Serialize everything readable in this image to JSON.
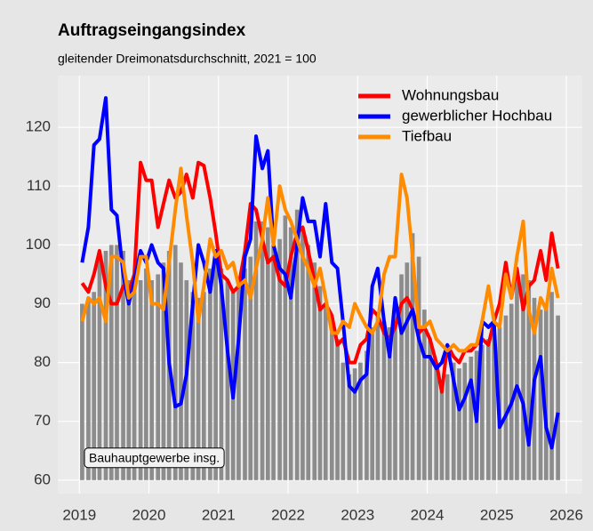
{
  "chart_data": {
    "type": "line",
    "title": "Auftragseingangsindex",
    "subtitle": "gleitender Dreimonatsdurchschnitt, 2021 = 100",
    "x": [
      2019.04,
      2019.13,
      2019.21,
      2019.29,
      2019.38,
      2019.46,
      2019.54,
      2019.63,
      2019.71,
      2019.79,
      2019.88,
      2019.96,
      2020.04,
      2020.13,
      2020.21,
      2020.29,
      2020.38,
      2020.46,
      2020.54,
      2020.63,
      2020.71,
      2020.79,
      2020.88,
      2020.96,
      2021.04,
      2021.13,
      2021.21,
      2021.29,
      2021.38,
      2021.46,
      2021.54,
      2021.63,
      2021.71,
      2021.79,
      2021.88,
      2021.96,
      2022.04,
      2022.13,
      2022.21,
      2022.29,
      2022.38,
      2022.46,
      2022.54,
      2022.63,
      2022.71,
      2022.79,
      2022.88,
      2022.96,
      2023.04,
      2023.13,
      2023.21,
      2023.29,
      2023.38,
      2023.46,
      2023.54,
      2023.63,
      2023.71,
      2023.79,
      2023.88,
      2023.96,
      2024.04,
      2024.13,
      2024.21,
      2024.29,
      2024.38,
      2024.46,
      2024.54,
      2024.63,
      2024.71,
      2024.79,
      2024.88,
      2024.96,
      2025.04,
      2025.13,
      2025.21,
      2025.29,
      2025.38,
      2025.46,
      2025.54,
      2025.63,
      2025.71,
      2025.79,
      2025.88
    ],
    "bars": {
      "name": "Bauhauptgewerbe insg.",
      "color": "#8c8c8c",
      "values": [
        90,
        91,
        92,
        98,
        99,
        100,
        100,
        99,
        94,
        92,
        94,
        96,
        94,
        95,
        97,
        99,
        100,
        97,
        94,
        92,
        91,
        92,
        96,
        97,
        96,
        94,
        92,
        93,
        96,
        98,
        104,
        104,
        103,
        100,
        101,
        105,
        103,
        106,
        103,
        100,
        97,
        93,
        90,
        86,
        84,
        80,
        78,
        79,
        80,
        82,
        86,
        88,
        87,
        86,
        89,
        95,
        97,
        102,
        98,
        89,
        84,
        80,
        77,
        78,
        80,
        79,
        80,
        81,
        82,
        83,
        84,
        85,
        86,
        88,
        90,
        94,
        95,
        94,
        91,
        89,
        90,
        92,
        88
      ]
    },
    "series": [
      {
        "name": "Wohnungsbau",
        "color": "#ff0000",
        "values": [
          93.5,
          92,
          95,
          99,
          93,
          90,
          90,
          93,
          92,
          95,
          114,
          111,
          111,
          103,
          107,
          111,
          108,
          109,
          112,
          108,
          114,
          113.5,
          108,
          102,
          95,
          94,
          92,
          93,
          99,
          107,
          106,
          101,
          97,
          98,
          94,
          93,
          98,
          102,
          103,
          99,
          94,
          89,
          90,
          88,
          83,
          84,
          80,
          80,
          83,
          84,
          89,
          88,
          85,
          84,
          86,
          90,
          91,
          89,
          85,
          86,
          84,
          80,
          75,
          83,
          81,
          80,
          82,
          82,
          83,
          84,
          83,
          87,
          90,
          97,
          91,
          96,
          89,
          93,
          94,
          99,
          94,
          102,
          96
        ]
      },
      {
        "name": "gewerblicher Hochbau",
        "color": "#0000ff",
        "values": [
          97,
          103,
          117,
          118,
          125,
          106,
          105,
          95,
          90,
          94,
          99,
          97,
          100,
          97,
          96,
          80,
          72.5,
          73,
          78,
          90,
          100,
          97,
          92,
          99,
          93,
          82,
          74,
          84,
          98,
          101,
          118.5,
          113,
          116,
          100,
          96,
          95,
          91,
          100,
          108,
          104,
          104,
          98,
          107,
          97,
          96,
          87,
          76,
          75,
          77,
          78,
          93,
          96,
          87,
          81,
          91,
          85,
          87,
          89,
          84,
          81,
          81,
          79,
          80,
          83,
          77,
          72,
          74,
          77,
          70,
          87,
          86,
          87,
          69,
          71,
          73,
          76,
          73,
          66,
          77,
          81,
          69,
          65.5,
          71.5
        ]
      },
      {
        "name": "Tiefbau",
        "color": "#ff8c00",
        "values": [
          87,
          91,
          90,
          91,
          87,
          98,
          98,
          97,
          91,
          92,
          98,
          98,
          90,
          90,
          89,
          97,
          106,
          113,
          105,
          97,
          87,
          93,
          101,
          98,
          99,
          96,
          97,
          93,
          94,
          91,
          96,
          101,
          108,
          100,
          110,
          106,
          104,
          101,
          98,
          96,
          93,
          96,
          91,
          85,
          85,
          87,
          86,
          90,
          88,
          86,
          85,
          87,
          95,
          98,
          98,
          112,
          108,
          98,
          86,
          86,
          87,
          84,
          83,
          82,
          83,
          82,
          82,
          83,
          83,
          87,
          93,
          87,
          86,
          95,
          91,
          98,
          104,
          89,
          85,
          91,
          89,
          96,
          91
        ]
      }
    ],
    "xlim": [
      2018.69,
      2026.23
    ],
    "xticks": [
      2019,
      2020,
      2021,
      2022,
      2023,
      2024,
      2025,
      2026
    ],
    "ylim": [
      57.7,
      128.8
    ],
    "yticks": [
      60,
      70,
      80,
      90,
      100,
      110,
      120
    ],
    "grid": true,
    "legend": "top-right"
  }
}
